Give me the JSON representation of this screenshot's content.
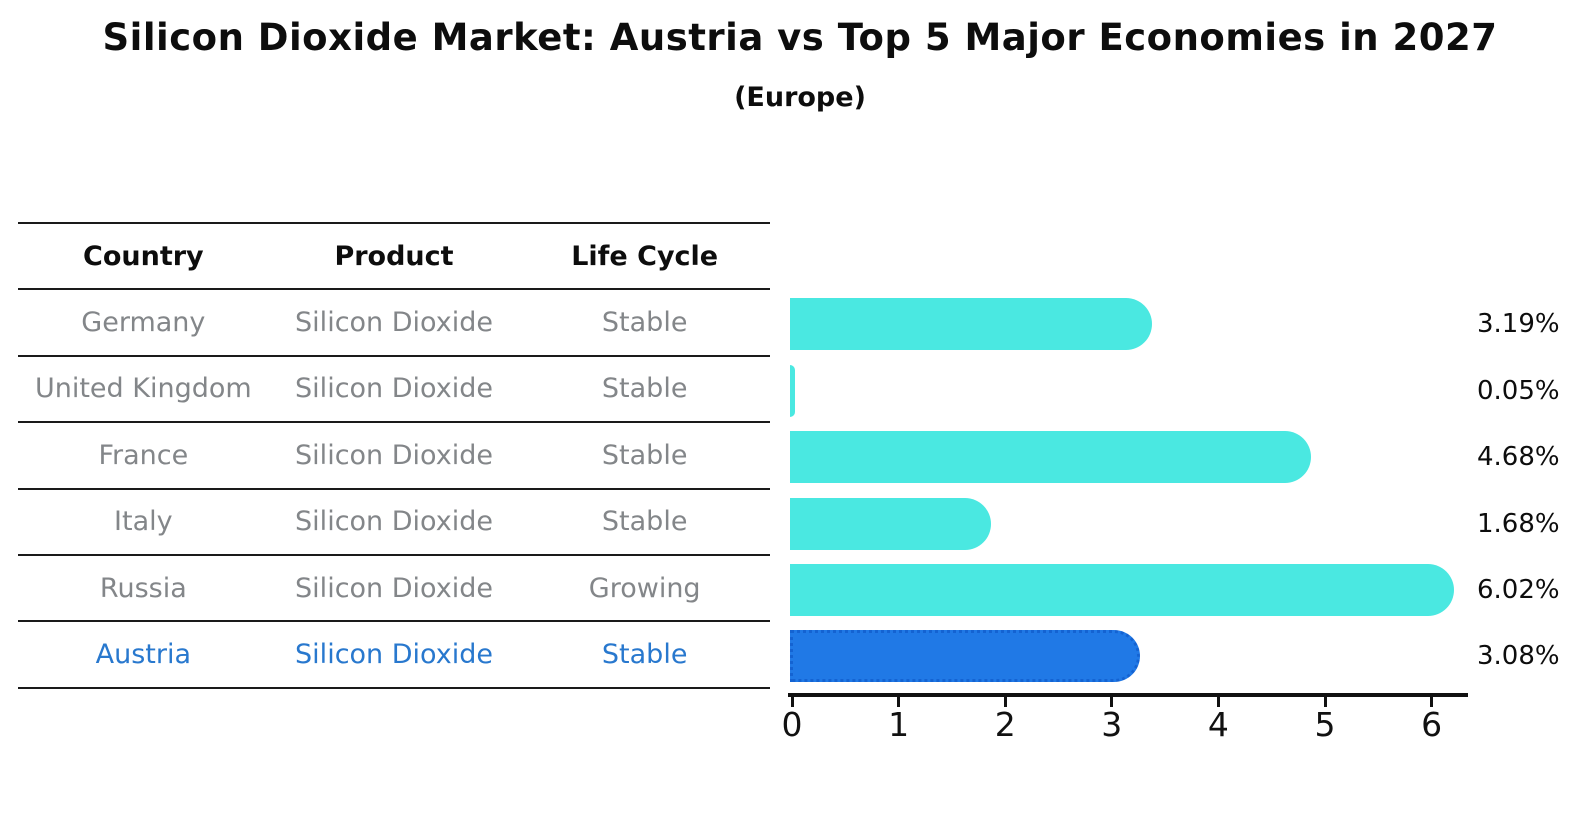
{
  "header": {
    "title": "Silicon Dioxide Market: Austria vs Top 5 Major Economies in 2027",
    "subtitle": "(Europe)"
  },
  "table": {
    "headers": [
      "Country",
      "Product",
      "Life Cycle"
    ],
    "rows": [
      {
        "country": "Germany",
        "product": "Silicon Dioxide",
        "life_cycle": "Stable",
        "highlighted": false
      },
      {
        "country": "United Kingdom",
        "product": "Silicon Dioxide",
        "life_cycle": "Stable",
        "highlighted": false
      },
      {
        "country": "France",
        "product": "Silicon Dioxide",
        "life_cycle": "Stable",
        "highlighted": false
      },
      {
        "country": "Italy",
        "product": "Silicon Dioxide",
        "life_cycle": "Stable",
        "highlighted": false
      },
      {
        "country": "Russia",
        "product": "Silicon Dioxide",
        "life_cycle": "Growing",
        "highlighted": false
      },
      {
        "country": "Austria",
        "product": "Silicon Dioxide",
        "life_cycle": "Stable",
        "highlighted": true
      }
    ]
  },
  "chart_data": {
    "type": "bar",
    "orientation": "horizontal",
    "title": "Silicon Dioxide Market: Austria vs Top 5 Major Economies in 2027",
    "subtitle": "(Europe)",
    "categories": [
      "Germany",
      "United Kingdom",
      "France",
      "Italy",
      "Russia",
      "Austria"
    ],
    "values": [
      3.19,
      0.05,
      4.68,
      1.68,
      6.02,
      3.08
    ],
    "value_labels": [
      "3.19%",
      "0.05%",
      "4.68%",
      "1.68%",
      "6.02%",
      "3.08%"
    ],
    "xlabel": "",
    "ylabel": "",
    "xlim": [
      0,
      6.35
    ],
    "xticks": [
      0,
      1,
      2,
      3,
      4,
      5,
      6
    ],
    "grid": false,
    "legend": "none",
    "bar_color": "#4AE8E1",
    "highlight_color": "#2079E6",
    "highlight_border_color": "#1463D2",
    "highlight_index": 5,
    "highlight_text_color": "#2878CE"
  }
}
